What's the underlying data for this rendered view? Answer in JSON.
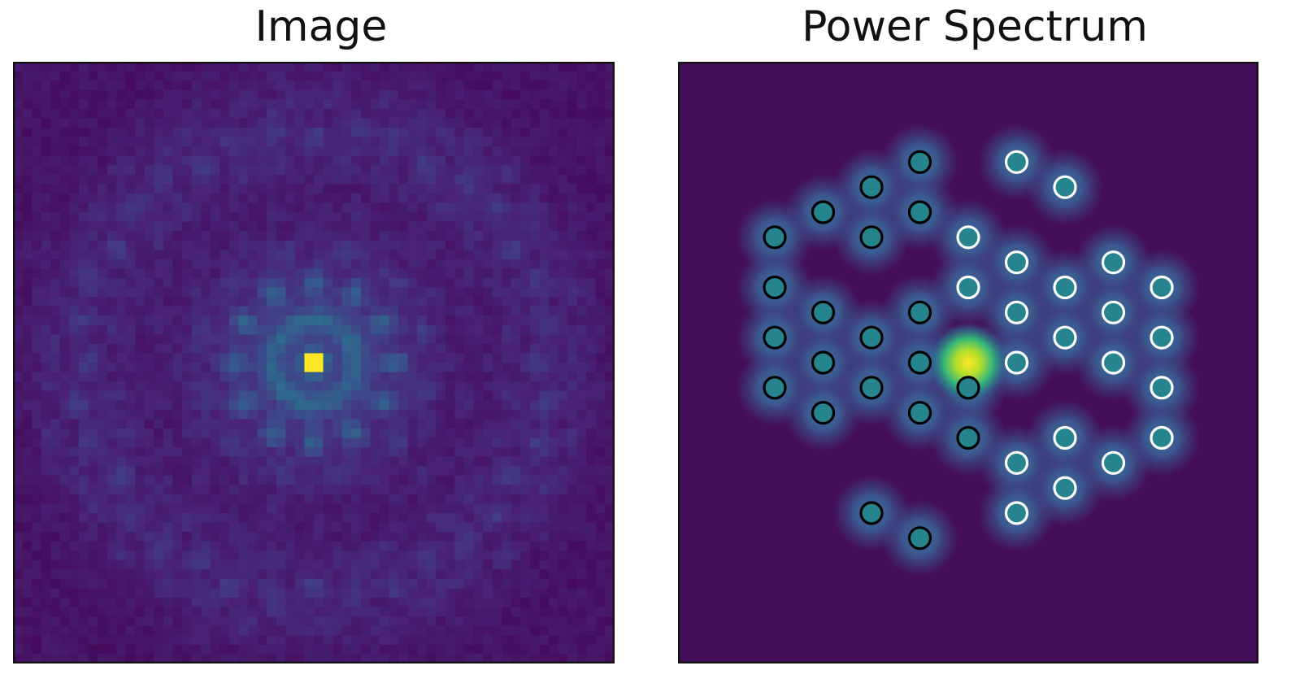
{
  "chart_data": [
    {
      "type": "heatmap",
      "title": "Image",
      "xlabel": "",
      "ylabel": "",
      "ticks": "none",
      "colormap": "viridis",
      "grid_size": 64,
      "pattern": "12-fold quasicrystal diffraction-like intensity, bright central peak",
      "central_peak_intensity": 1.0
    },
    {
      "type": "heatmap",
      "title": "Power Spectrum",
      "xlabel": "",
      "ylabel": "",
      "ticks": "none",
      "colormap": "viridis",
      "x_range": [
        -6,
        6
      ],
      "y_range": [
        -6,
        6
      ],
      "central_peak": {
        "x": 0,
        "y": 0,
        "intensity": 1.0
      },
      "peak_intensity": 0.45,
      "marker_groups": [
        {
          "edge_color": "#000000",
          "points": [
            [
              -1,
              4
            ],
            [
              -2,
              3.5
            ],
            [
              -3,
              3
            ],
            [
              -1,
              3
            ],
            [
              -4,
              2.5
            ],
            [
              -2,
              2.5
            ],
            [
              -4,
              1.5
            ],
            [
              -3,
              1
            ],
            [
              -1,
              1
            ],
            [
              -4,
              0.5
            ],
            [
              -2,
              0.5
            ],
            [
              -3,
              0
            ],
            [
              -1,
              0
            ],
            [
              -4,
              -0.5
            ],
            [
              -2,
              -0.5
            ],
            [
              0,
              -0.5
            ],
            [
              -3,
              -1
            ],
            [
              -1,
              -1
            ],
            [
              0,
              -1.5
            ],
            [
              -2,
              -3
            ],
            [
              -1,
              -3.5
            ]
          ]
        },
        {
          "edge_color": "#ffffff",
          "points": [
            [
              1,
              4
            ],
            [
              2,
              3.5
            ],
            [
              0,
              2.5
            ],
            [
              1,
              2
            ],
            [
              3,
              2
            ],
            [
              0,
              1.5
            ],
            [
              2,
              1.5
            ],
            [
              4,
              1.5
            ],
            [
              1,
              1
            ],
            [
              3,
              1
            ],
            [
              2,
              0.5
            ],
            [
              4,
              0.5
            ],
            [
              1,
              0
            ],
            [
              3,
              0
            ],
            [
              4,
              -0.5
            ],
            [
              2,
              -1.5
            ],
            [
              4,
              -1.5
            ],
            [
              1,
              -2
            ],
            [
              3,
              -2
            ],
            [
              2,
              -2.5
            ],
            [
              1,
              -3
            ]
          ]
        }
      ]
    }
  ],
  "colors": {
    "cmap_low": "#440154",
    "cmap_high": "#fde725",
    "frame": "#111111",
    "background": "#ffffff"
  }
}
